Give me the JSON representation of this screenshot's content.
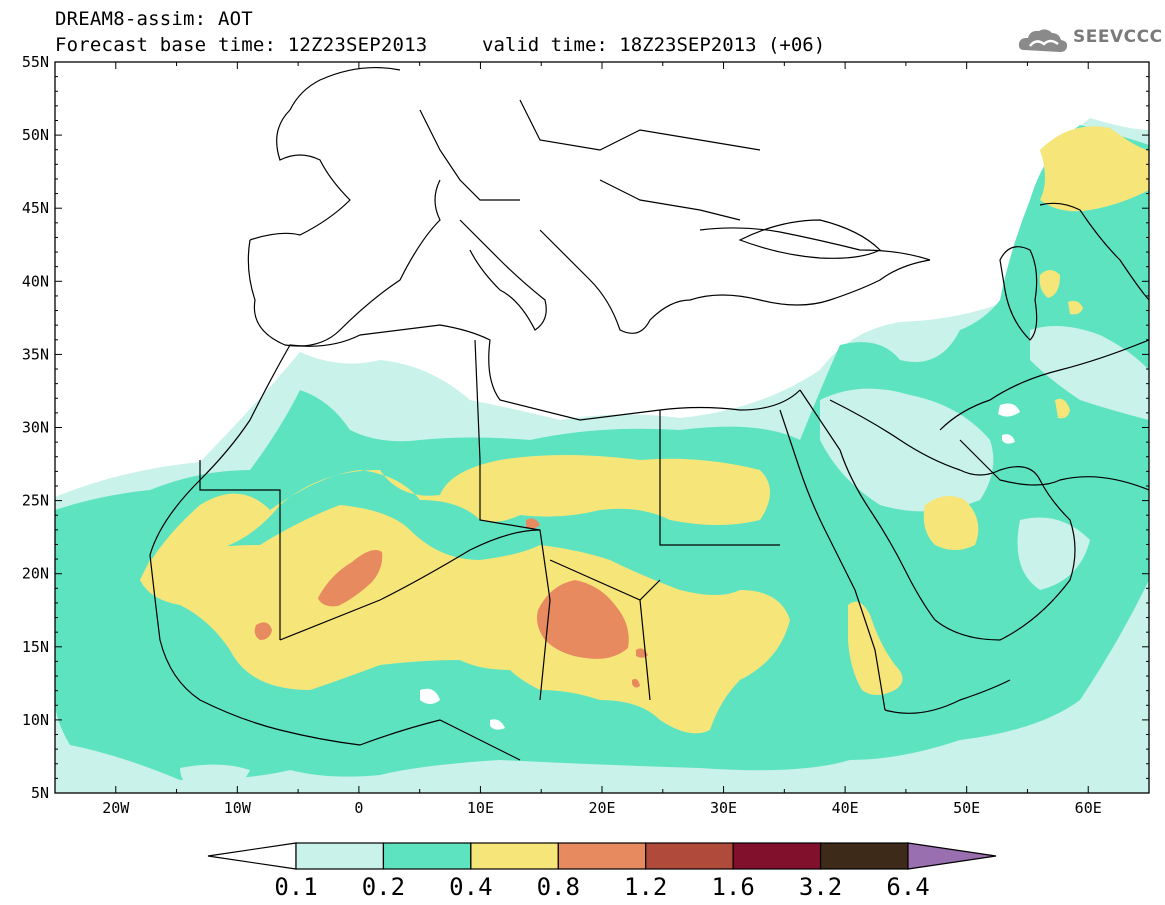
{
  "header": {
    "title": "DREAM8-assim: AOT",
    "base_time": "Forecast base time: 12Z23SEP2013",
    "valid_time": "valid time: 18Z23SEP2013 (+06)",
    "logo_text": "SEEVCCC"
  },
  "map": {
    "variable": "AOT",
    "lon_range": [
      -25,
      65
    ],
    "lat_range": [
      5,
      55
    ],
    "lon_ticks": [
      "20W",
      "10W",
      "0",
      "10E",
      "20E",
      "30E",
      "40E",
      "50E",
      "60E"
    ],
    "lat_ticks": [
      "55N",
      "50N",
      "45N",
      "40N",
      "35N",
      "30N",
      "25N",
      "20N",
      "15N",
      "10N",
      "5N"
    ]
  },
  "colorbar": {
    "labels": [
      "0.1",
      "0.2",
      "0.4",
      "0.8",
      "1.2",
      "1.6",
      "3.2",
      "6.4"
    ],
    "colors": [
      "#c8f2ea",
      "#5ee3c0",
      "#f6e67a",
      "#e88a60",
      "#b04a3a",
      "#80102c",
      "#3e2a18",
      "#9a6fb0"
    ]
  }
}
